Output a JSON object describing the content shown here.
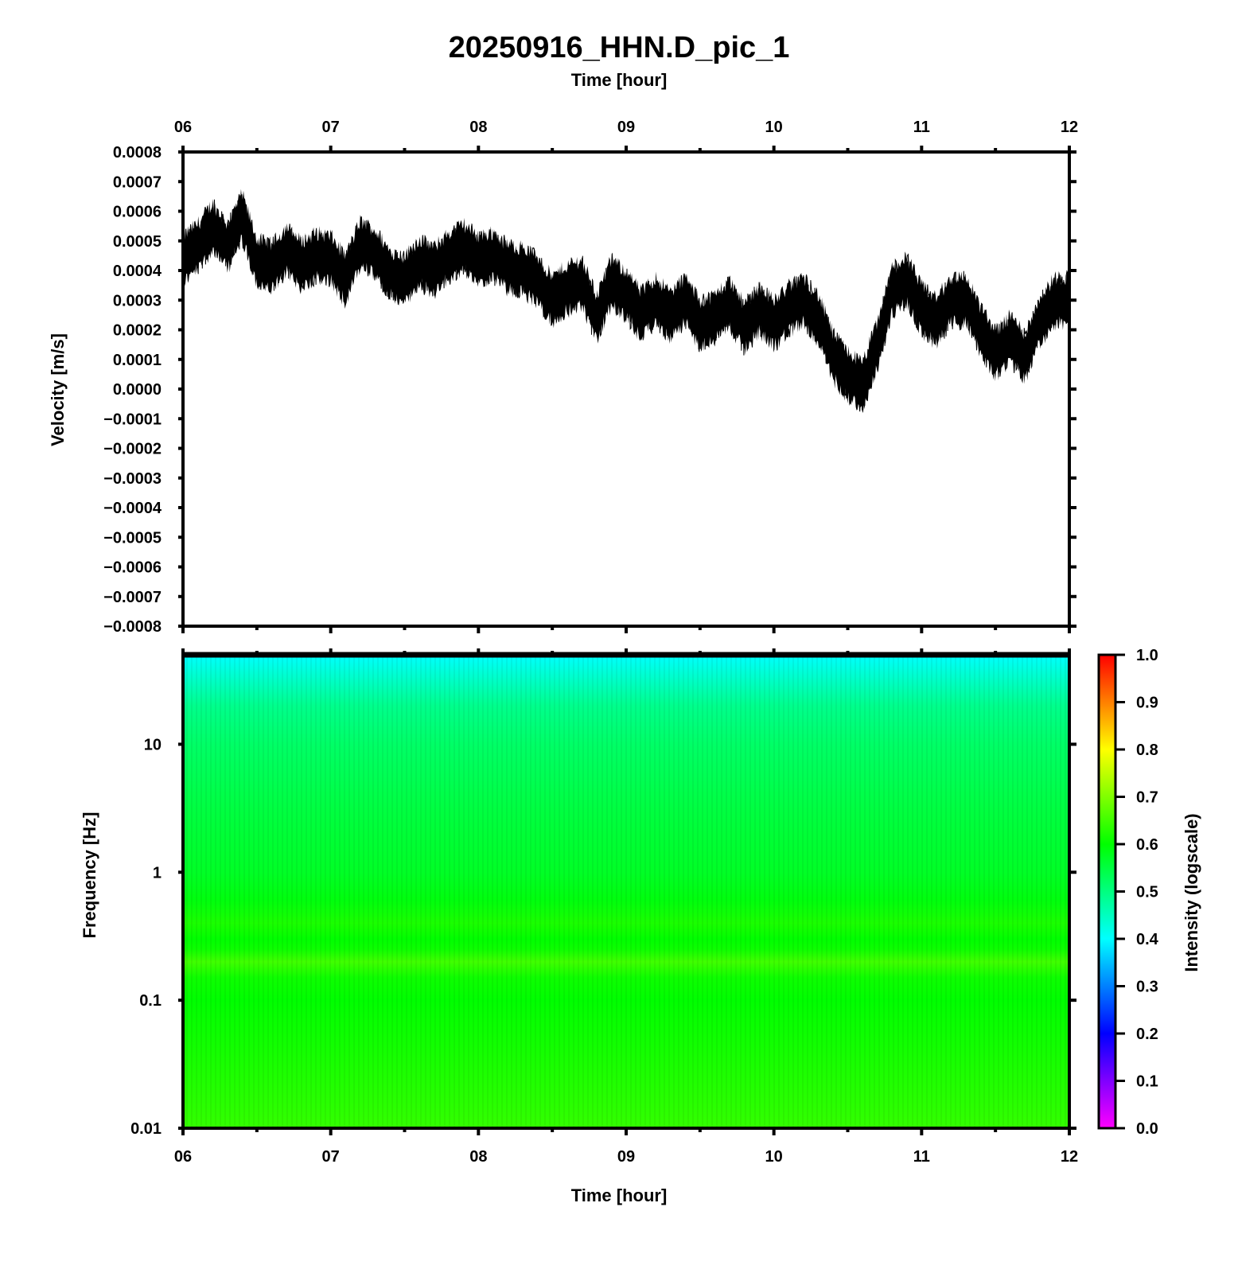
{
  "title": "20250916_HHN.D_pic_1",
  "chart_data": [
    {
      "type": "line",
      "panel": "waveform",
      "xlabel": "Time [hour]",
      "xlabel_position": "top",
      "ylabel": "Velocity [m/s]",
      "xlim": [
        6,
        12
      ],
      "ylim": [
        -0.0008,
        0.0008
      ],
      "x_tick_labels": [
        "06",
        "07",
        "08",
        "09",
        "10",
        "11",
        "12"
      ],
      "y_tick_labels": [
        "0.0008",
        "0.0007",
        "0.0006",
        "0.0005",
        "0.0004",
        "0.0003",
        "0.0002",
        "0.0001",
        "0.0000",
        "−0.0001",
        "−0.0002",
        "−0.0003",
        "−0.0004",
        "−0.0005",
        "−0.0006",
        "−0.0007",
        "−0.0008"
      ],
      "series": [
        {
          "color": "#000000",
          "x": [
            6.0,
            6.1,
            6.2,
            6.3,
            6.4,
            6.5,
            6.6,
            6.7,
            6.8,
            6.9,
            7.0,
            7.1,
            7.2,
            7.3,
            7.4,
            7.5,
            7.6,
            7.7,
            7.8,
            7.9,
            8.0,
            8.1,
            8.2,
            8.3,
            8.4,
            8.5,
            8.6,
            8.7,
            8.8,
            8.9,
            9.0,
            9.1,
            9.2,
            9.3,
            9.4,
            9.5,
            9.6,
            9.7,
            9.8,
            9.9,
            10.0,
            10.1,
            10.2,
            10.3,
            10.4,
            10.5,
            10.6,
            10.7,
            10.8,
            10.9,
            11.0,
            11.1,
            11.2,
            11.3,
            11.4,
            11.5,
            11.6,
            11.7,
            11.8,
            11.9,
            12.0
          ],
          "y": [
            0.00044,
            0.00048,
            0.00055,
            0.00048,
            0.00058,
            0.00043,
            0.00041,
            0.00047,
            0.00042,
            0.00045,
            0.00044,
            0.00037,
            0.00049,
            0.00046,
            0.00039,
            0.00037,
            0.00043,
            0.0004,
            0.00045,
            0.00048,
            0.00044,
            0.00045,
            0.00041,
            0.0004,
            0.00037,
            0.0003,
            0.00034,
            0.00036,
            0.00024,
            0.00036,
            0.00032,
            0.00025,
            0.0003,
            0.00025,
            0.0003,
            0.00022,
            0.00024,
            0.00029,
            0.00021,
            0.00027,
            0.00022,
            0.00027,
            0.0003,
            0.00024,
            0.00011,
            5e-05,
            1e-05,
            0.00015,
            0.00033,
            0.00037,
            0.00027,
            0.00023,
            0.0003,
            0.0003,
            0.0002,
            0.00012,
            0.00017,
            0.00011,
            0.00023,
            0.0003,
            0.0003
          ],
          "noise_amplitude": 9e-05
        }
      ]
    },
    {
      "type": "heatmap",
      "panel": "spectrogram",
      "xlabel": "Time [hour]",
      "ylabel": "Frequency [Hz]",
      "y_scale": "log",
      "xlim": [
        6,
        12
      ],
      "ylim": [
        0.01,
        50
      ],
      "x_tick_labels": [
        "06",
        "07",
        "08",
        "09",
        "10",
        "11",
        "12"
      ],
      "y_ticks": [
        0.01,
        0.1,
        1,
        10
      ],
      "y_tick_labels": [
        "0.01",
        "0.1",
        "1",
        "10"
      ],
      "frequency_profile": {
        "frequencies_hz": [
          0.01,
          0.03,
          0.1,
          0.15,
          0.2,
          0.25,
          0.3,
          0.4,
          0.6,
          1,
          3,
          10,
          20,
          30,
          50
        ],
        "intensity": [
          0.64,
          0.62,
          0.6,
          0.61,
          0.65,
          0.61,
          0.6,
          0.62,
          0.59,
          0.57,
          0.55,
          0.52,
          0.49,
          0.45,
          0.4
        ]
      },
      "colorbar": {
        "label": "Intensity (logscale)",
        "range": [
          0.0,
          1.0
        ],
        "tick_labels": [
          "0.0",
          "0.1",
          "0.2",
          "0.3",
          "0.4",
          "0.5",
          "0.6",
          "0.7",
          "0.8",
          "0.9",
          "1.0"
        ],
        "colormap": [
          "#ff00ff",
          "#0000ff",
          "#00ffff",
          "#00ff00",
          "#ffff00",
          "#ff0000"
        ]
      }
    }
  ]
}
